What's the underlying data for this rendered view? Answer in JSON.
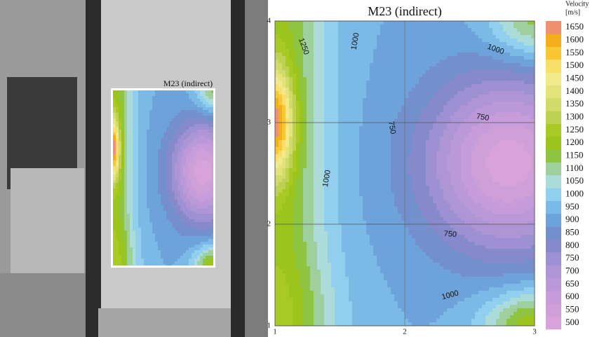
{
  "chart_data": {
    "type": "contour",
    "title": "M23 (indirect)",
    "xlim": [
      1,
      3
    ],
    "ylim": [
      1,
      4
    ],
    "xticks": [
      1,
      2,
      3
    ],
    "yticks": [
      1,
      2,
      3,
      4
    ],
    "grid": true,
    "colorbar": {
      "title": [
        "Velocity",
        "[m/s]"
      ],
      "ticks": [
        500,
        550,
        600,
        650,
        700,
        750,
        800,
        850,
        900,
        950,
        1000,
        1050,
        1100,
        1150,
        1200,
        1250,
        1300,
        1350,
        1400,
        1450,
        1500,
        1550,
        1600,
        1650
      ],
      "colors": [
        "#d7a3d8",
        "#cf9fd8",
        "#c69cda",
        "#bb99d8",
        "#ad95d6",
        "#9d91d3",
        "#8689ca",
        "#7390cc",
        "#6ea2da",
        "#7bb9e7",
        "#92cfee",
        "#acdcd9",
        "#9fcf9c",
        "#8ec43f",
        "#9bc41c",
        "#a9c925",
        "#bdd252",
        "#d1db69",
        "#e2e37b",
        "#f1ea8d",
        "#f8df68",
        "#f7c734",
        "#f4ae1b",
        "#ef9071"
      ]
    },
    "contour_labels": [
      1250,
      1000,
      1000,
      750,
      750,
      1000,
      750,
      1000
    ]
  }
}
